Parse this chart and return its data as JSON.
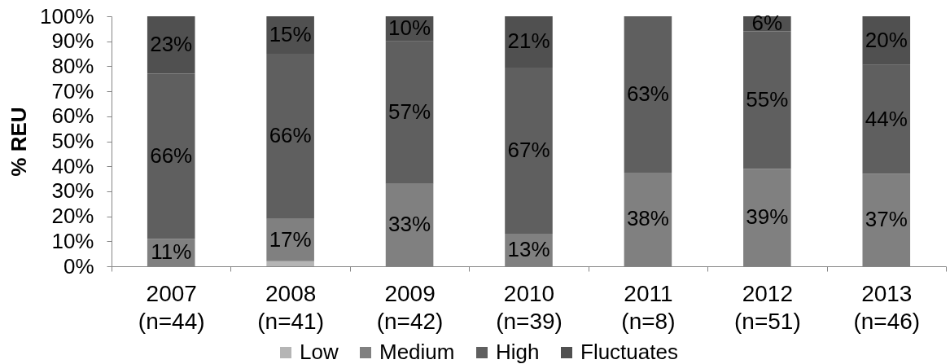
{
  "chart_data": {
    "type": "bar",
    "stacked": true,
    "ylabel": "% REU",
    "categories": [
      "2007\n(n=44)",
      "2008\n(n=41)",
      "2009\n(n=42)",
      "2010\n(n=39)",
      "2011\n(n=8)",
      "2012\n(n=51)",
      "2013\n(n=46)"
    ],
    "ylim": [
      0,
      100
    ],
    "yticks": [
      {
        "value": 0,
        "label": "0%"
      },
      {
        "value": 10,
        "label": "10%"
      },
      {
        "value": 20,
        "label": "20%"
      },
      {
        "value": 30,
        "label": "30%"
      },
      {
        "value": 40,
        "label": "40%"
      },
      {
        "value": 50,
        "label": "50%"
      },
      {
        "value": 60,
        "label": "60%"
      },
      {
        "value": 70,
        "label": "70%"
      },
      {
        "value": 80,
        "label": "80%"
      },
      {
        "value": 90,
        "label": "90%"
      },
      {
        "value": 100,
        "label": "100%"
      }
    ],
    "grid": false,
    "legend": "bottom",
    "series": [
      {
        "name": "Low",
        "color": "#b5b5b5",
        "values": [
          null,
          2,
          null,
          null,
          null,
          null,
          null
        ],
        "value_labels": [
          null,
          null,
          null,
          null,
          null,
          null,
          null
        ]
      },
      {
        "name": "Medium",
        "color": "#808080",
        "values": [
          11,
          17,
          33,
          13,
          37.5,
          39,
          37
        ],
        "value_labels": [
          "11%",
          "17%",
          "33%",
          "13%",
          "38%",
          "39%",
          "37%"
        ]
      },
      {
        "name": "High",
        "color": "#5f5f5f",
        "values": [
          66,
          66,
          57,
          66.5,
          62.5,
          55,
          43.5
        ],
        "value_labels": [
          "66%",
          "66%",
          "57%",
          "67%",
          "63%",
          "55%",
          "44%"
        ]
      },
      {
        "name": "Fluctuates",
        "color": "#505050",
        "values": [
          23,
          15,
          10,
          20.5,
          null,
          6,
          19.5
        ],
        "value_labels": [
          "23%",
          "15%",
          "10%",
          "21%",
          null,
          "6%",
          "20%"
        ]
      }
    ]
  }
}
